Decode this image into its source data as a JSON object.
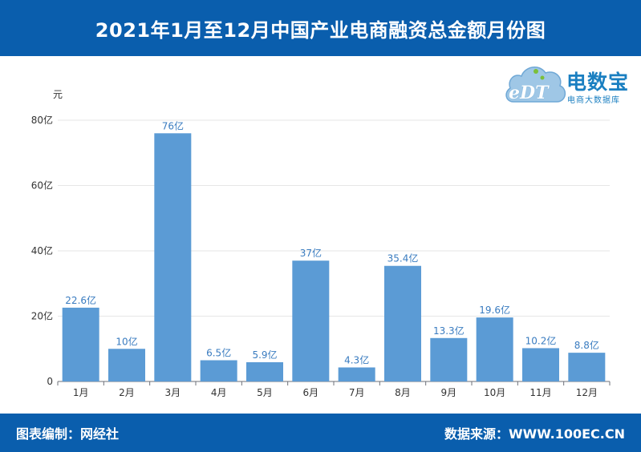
{
  "header": {
    "title": "2021年1月至12月中国产业电商融资总金额月份图"
  },
  "footer": {
    "left": "图表编制：网经社",
    "right": "数据来源：WWW.100EC.CN"
  },
  "logo": {
    "main": "电数宝",
    "sub": "电商大数据库",
    "edt": "eDT"
  },
  "colors": {
    "header_bg": "#0a5ead",
    "bar": "#5b9bd5",
    "value_label": "#3a7cc0"
  },
  "chart_data": {
    "type": "bar",
    "title": "2021年1月至12月中国产业电商融资总金额月份图",
    "ylabel": "元",
    "xlabel": "",
    "ylim": [
      0,
      80
    ],
    "yticks": [
      "0",
      "20亿",
      "40亿",
      "60亿",
      "80亿"
    ],
    "categories": [
      "1月",
      "2月",
      "3月",
      "4月",
      "5月",
      "6月",
      "7月",
      "8月",
      "9月",
      "10月",
      "11月",
      "12月"
    ],
    "values": [
      22.6,
      10,
      76,
      6.5,
      5.9,
      37,
      4.3,
      35.4,
      13.3,
      19.6,
      10.2,
      8.8
    ],
    "value_labels": [
      "22.6亿",
      "10亿",
      "76亿",
      "6.5亿",
      "5.9亿",
      "37亿",
      "4.3亿",
      "35.4亿",
      "13.3亿",
      "19.6亿",
      "10.2亿",
      "8.8亿"
    ],
    "grid": true,
    "legend": "none"
  }
}
